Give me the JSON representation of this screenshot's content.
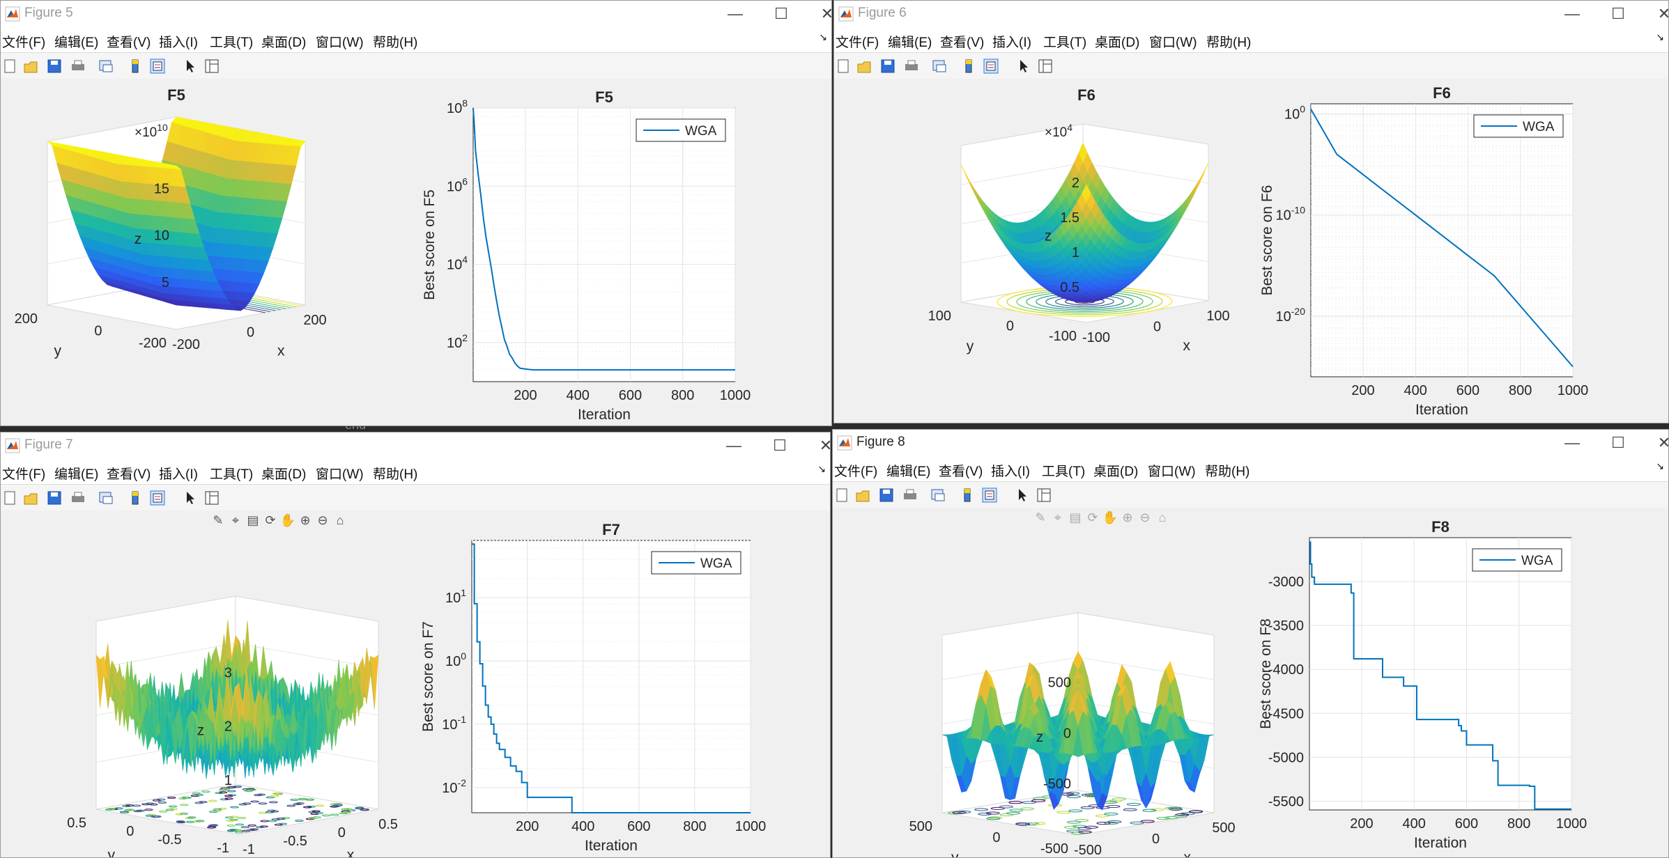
{
  "menu": [
    "文件(F)",
    "编辑(E)",
    "查看(V)",
    "插入(I)",
    "工具(T)",
    "桌面(D)",
    "窗口(W)",
    "帮助(H)"
  ],
  "controls": {
    "minimize": "—",
    "maximize": "☐",
    "close": "✕"
  },
  "under_text": "end",
  "windows": [
    {
      "id": "fig5",
      "title": "Figure 5",
      "surface": {
        "title": "F5",
        "xlabel": "x",
        "ylabel": "y",
        "zlabel": "z",
        "multiplier": "×10",
        "multiplier_exp": "10",
        "zticks": [
          "5",
          "10",
          "15"
        ],
        "xticks": [
          "-200",
          "0",
          "200"
        ],
        "yticks": [
          "-200",
          "0",
          "200"
        ]
      },
      "chart_data": {
        "type": "line",
        "title": "F5",
        "xlabel": "Iteration",
        "ylabel": "Best score on F5",
        "yscale": "log",
        "xlim": [
          1,
          1000
        ],
        "ylim": [
          10,
          100000000
        ],
        "xticks": [
          "200",
          "400",
          "600",
          "800",
          "1000"
        ],
        "yticks": [
          {
            "base": "10",
            "exp": "2"
          },
          {
            "base": "10",
            "exp": "4"
          },
          {
            "base": "10",
            "exp": "6"
          },
          {
            "base": "10",
            "exp": "8"
          }
        ],
        "legend": "top-right",
        "series": [
          {
            "name": "WGA",
            "x": [
              1,
              5,
              10,
              20,
              30,
              40,
              50,
              60,
              70,
              80,
              90,
              100,
              110,
              120,
              130,
              140,
              150,
              160,
              170,
              180,
              200,
              230,
              300,
              1000
            ],
            "y": [
              100000000,
              40000000,
              8000000,
              2000000,
              600000,
              150000,
              50000,
              20000,
              8000,
              3000,
              1200,
              500,
              250,
              120,
              80,
              50,
              40,
              30,
              25,
              22,
              21,
              20,
              20,
              20
            ]
          }
        ]
      }
    },
    {
      "id": "fig6",
      "title": "Figure 6",
      "surface": {
        "title": "F6",
        "xlabel": "x",
        "ylabel": "y",
        "zlabel": "z",
        "multiplier": "×10",
        "multiplier_exp": "4",
        "zticks": [
          "0.5",
          "1",
          "1.5",
          "2"
        ],
        "xticks": [
          "-100",
          "0",
          "100"
        ],
        "yticks": [
          "-100",
          "0",
          "100"
        ]
      },
      "chart_data": {
        "type": "line",
        "title": "F6",
        "xlabel": "Iteration",
        "ylabel": "Best score on F6",
        "yscale": "log",
        "xlim": [
          1,
          1000
        ],
        "ylim": [
          1e-26,
          10
        ],
        "xticks": [
          "200",
          "400",
          "600",
          "800",
          "1000"
        ],
        "yticks": [
          {
            "base": "10",
            "exp": "-20"
          },
          {
            "base": "10",
            "exp": "-10"
          },
          {
            "base": "10",
            "exp": "0"
          }
        ],
        "legend": "top-right",
        "series": [
          {
            "name": "WGA",
            "x": [
              1,
              100,
              200,
              300,
              400,
              500,
              600,
              700,
              800,
              900,
              1000
            ],
            "y": [
              3,
              0.0001,
              1e-06,
              1e-08,
              1e-10,
              1e-12,
              1e-14,
              1e-16,
              1e-19,
              1e-22,
              1e-25
            ]
          }
        ]
      }
    },
    {
      "id": "fig7",
      "title": "Figure 7",
      "surface": {
        "title": "",
        "xlabel": "x",
        "ylabel": "y",
        "zlabel": "z",
        "multiplier": "",
        "multiplier_exp": "",
        "zticks": [
          "1",
          "2",
          "3"
        ],
        "xticks": [
          "-1",
          "-0.5",
          "0",
          "0.5"
        ],
        "yticks": [
          "-1",
          "-0.5",
          "0",
          "0.5"
        ]
      },
      "chart_data": {
        "type": "line",
        "title": "F7",
        "xlabel": "Iteration",
        "ylabel": "Best score on F7",
        "yscale": "log",
        "xlim": [
          1,
          1000
        ],
        "ylim": [
          0.004,
          80
        ],
        "xticks": [
          "200",
          "400",
          "600",
          "800",
          "1000"
        ],
        "yticks": [
          {
            "base": "10",
            "exp": "-2"
          },
          {
            "base": "10",
            "exp": "-1"
          },
          {
            "base": "10",
            "exp": "0"
          },
          {
            "base": "10",
            "exp": "1"
          }
        ],
        "legend": "top-right",
        "series": [
          {
            "name": "WGA",
            "x": [
              1,
              10,
              20,
              30,
              40,
              50,
              60,
              70,
              80,
              90,
              100,
              120,
              140,
              160,
              180,
              200,
              250,
              300,
              340,
              360,
              1000
            ],
            "y": [
              70,
              8,
              2,
              0.9,
              0.4,
              0.2,
              0.13,
              0.1,
              0.07,
              0.05,
              0.04,
              0.03,
              0.022,
              0.018,
              0.012,
              0.007,
              0.007,
              0.007,
              0.007,
              0.004,
              0.004
            ]
          }
        ]
      }
    },
    {
      "id": "fig8",
      "title": "Figure 8",
      "surface": {
        "title": "",
        "xlabel": "x",
        "ylabel": "y",
        "zlabel": "z",
        "multiplier": "",
        "multiplier_exp": "",
        "zticks": [
          "-500",
          "0",
          "500"
        ],
        "xticks": [
          "-500",
          "0",
          "500"
        ],
        "yticks": [
          "-500",
          "0",
          "500"
        ]
      },
      "chart_data": {
        "type": "line",
        "title": "F8",
        "xlabel": "Iteration",
        "ylabel": "Best score on F8",
        "xlim": [
          1,
          1000
        ],
        "ylim": [
          -5600,
          -2500
        ],
        "xticks": [
          "200",
          "400",
          "600",
          "800",
          "1000"
        ],
        "yticks": [
          "-5500",
          "-5000",
          "-4500",
          "-4000",
          "-3500",
          "-3000"
        ],
        "legend": "top-right",
        "series": [
          {
            "name": "WGA",
            "x": [
              1,
              5,
              10,
              20,
              30,
              60,
              90,
              130,
              160,
              170,
              200,
              230,
              260,
              280,
              300,
              340,
              360,
              400,
              410,
              440,
              560,
              570,
              580,
              600,
              650,
              700,
              720,
              800,
              840,
              860,
              1000
            ],
            "y": [
              -2550,
              -2800,
              -2950,
              -3030,
              -3030,
              -3030,
              -3030,
              -3030,
              -3130,
              -3880,
              -3880,
              -3880,
              -3880,
              -4090,
              -4090,
              -4090,
              -4190,
              -4190,
              -4570,
              -4570,
              -4570,
              -4640,
              -4700,
              -4860,
              -4860,
              -5040,
              -5320,
              -5320,
              -5330,
              -5590,
              -5590
            ]
          }
        ]
      }
    }
  ]
}
